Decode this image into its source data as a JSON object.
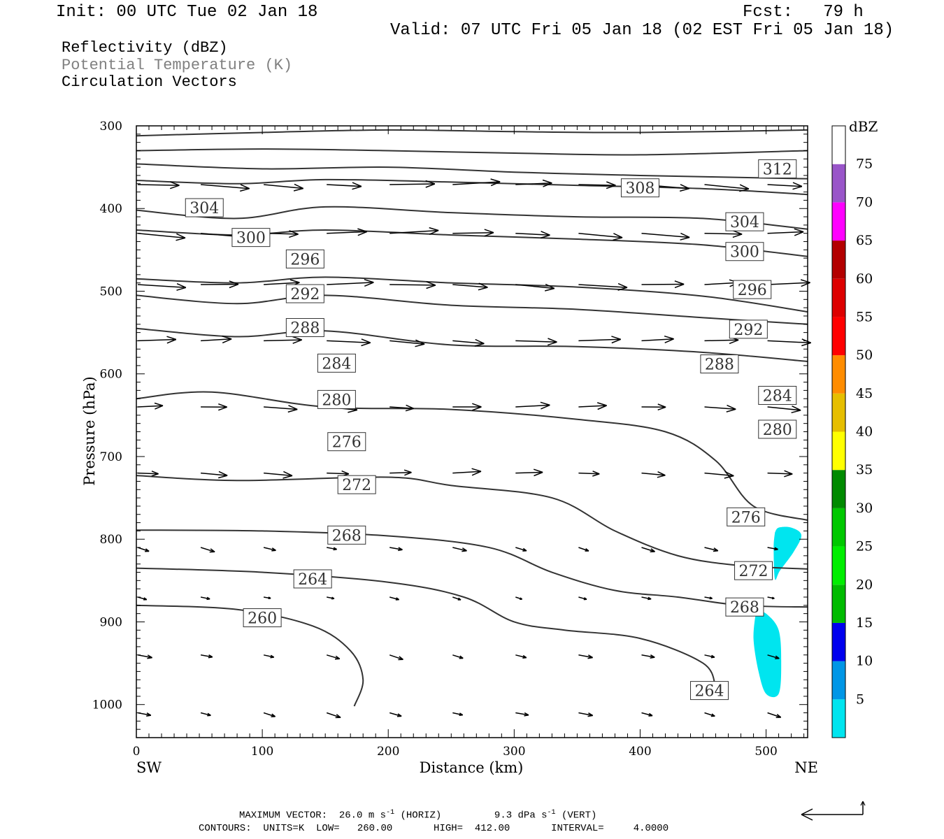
{
  "header": {
    "init": "Init: 00 UTC Tue 02 Jan 18",
    "fcst": "Fcst:   79 h",
    "valid": "Valid: 07 UTC Fri 05 Jan 18 (02 EST Fri 05 Jan 18)"
  },
  "fields": [
    {
      "label": "Reflectivity (dBZ)",
      "color": "#000000"
    },
    {
      "label": "Potential Temperature (K)",
      "color": "#808080"
    },
    {
      "label": "Circulation Vectors",
      "color": "#000000"
    }
  ],
  "footer": {
    "max_vector_label": "MAXIMUM VECTOR:",
    "horiz": "26.0 m s",
    "horiz_unit": "(HORIZ)",
    "vert": "9.3 dPa s",
    "vert_unit": "(VERT)",
    "contours": "CONTOURS:  UNITS=K  LOW=   260.00       HIGH=  412.00       INTERVAL=     4.0000"
  },
  "chart_data": {
    "type": "cross-section",
    "xlabel": "Distance (km)",
    "ylabel": "Pressure (hPa)",
    "x_left_label": "SW",
    "x_right_label": "NE",
    "xlim": [
      0,
      533
    ],
    "ylim": [
      1040,
      300
    ],
    "x_ticks": [
      0,
      100,
      200,
      300,
      400,
      500
    ],
    "y_ticks": [
      300,
      400,
      500,
      600,
      700,
      800,
      900,
      1000
    ],
    "colorbar": {
      "unit": "dBZ",
      "levels": [
        5,
        10,
        15,
        20,
        25,
        30,
        35,
        40,
        45,
        50,
        55,
        60,
        65,
        70,
        75
      ],
      "colors": [
        "#00e5ef",
        "#0096e6",
        "#0000ee",
        "#00bb00",
        "#00ee00",
        "#00c800",
        "#008a00",
        "#ffff00",
        "#e6be00",
        "#ff8c00",
        "#ff0000",
        "#dd0000",
        "#b30000",
        "#ff00ff",
        "#9955c9",
        "#ffffff"
      ]
    },
    "reflectivity_areas": [
      {
        "dbz": 5,
        "points": [
          [
            507,
            792
          ],
          [
            510,
            786
          ],
          [
            520,
            786
          ],
          [
            528,
            795
          ],
          [
            522,
            815
          ],
          [
            511,
            838
          ],
          [
            507,
            848
          ],
          [
            506,
            810
          ]
        ]
      },
      {
        "dbz": 5,
        "points": [
          [
            492,
            887
          ],
          [
            500,
            890
          ],
          [
            510,
            910
          ],
          [
            512,
            950
          ],
          [
            510,
            987
          ],
          [
            500,
            987
          ],
          [
            494,
            960
          ],
          [
            490,
            920
          ]
        ]
      }
    ],
    "theta_contours": [
      {
        "value": 312,
        "labels": [
          [
            509,
            352
          ]
        ],
        "points": [
          [
            0,
            312
          ],
          [
            100,
            308
          ],
          [
            200,
            305
          ],
          [
            300,
            307
          ],
          [
            400,
            308
          ],
          [
            533,
            305
          ]
        ]
      },
      {
        "value": 308,
        "labels": [
          [
            400,
            375
          ]
        ],
        "points": [
          [
            0,
            330
          ],
          [
            100,
            328
          ],
          [
            200,
            330
          ],
          [
            300,
            333
          ],
          [
            400,
            335
          ],
          [
            533,
            330
          ]
        ]
      },
      {
        "value": 304,
        "labels": [
          [
            54,
            399
          ],
          [
            483,
            416
          ]
        ],
        "points": [
          [
            0,
            346
          ],
          [
            100,
            352
          ],
          [
            200,
            350
          ],
          [
            300,
            356
          ],
          [
            400,
            360
          ],
          [
            533,
            364
          ]
        ]
      },
      {
        "value": 300,
        "labels": [
          [
            91,
            435
          ],
          [
            483,
            452
          ]
        ],
        "points": [
          [
            0,
            366
          ],
          [
            80,
            370
          ],
          [
            150,
            365
          ],
          [
            250,
            368
          ],
          [
            350,
            372
          ],
          [
            450,
            376
          ],
          [
            533,
            383
          ]
        ]
      },
      {
        "value": 296,
        "labels": [
          [
            134,
            461
          ],
          [
            489,
            498
          ]
        ],
        "points": [
          [
            0,
            402
          ],
          [
            80,
            412
          ],
          [
            150,
            398
          ],
          [
            250,
            405
          ],
          [
            350,
            410
          ],
          [
            450,
            412
          ],
          [
            533,
            425
          ]
        ]
      },
      {
        "value": 292,
        "labels": [
          [
            134,
            503
          ],
          [
            486,
            546
          ]
        ],
        "points": [
          [
            0,
            426
          ],
          [
            80,
            432
          ],
          [
            150,
            426
          ],
          [
            250,
            432
          ],
          [
            350,
            437
          ],
          [
            450,
            444
          ],
          [
            533,
            458
          ]
        ]
      },
      {
        "value": 288,
        "labels": [
          [
            134,
            544
          ],
          [
            463,
            588
          ]
        ],
        "points": [
          [
            0,
            485
          ],
          [
            80,
            490
          ],
          [
            150,
            483
          ],
          [
            250,
            490
          ],
          [
            350,
            495
          ],
          [
            450,
            506
          ],
          [
            533,
            525
          ]
        ]
      },
      {
        "value": 284,
        "labels": [
          [
            159,
            587
          ],
          [
            509,
            626
          ]
        ],
        "points": [
          [
            0,
            505
          ],
          [
            80,
            515
          ],
          [
            150,
            505
          ],
          [
            250,
            517
          ],
          [
            350,
            522
          ],
          [
            450,
            532
          ],
          [
            533,
            540
          ]
        ]
      },
      {
        "value": 280,
        "labels": [
          [
            159,
            631
          ],
          [
            509,
            667
          ]
        ],
        "points": [
          [
            0,
            545
          ],
          [
            80,
            555
          ],
          [
            150,
            548
          ],
          [
            250,
            565
          ],
          [
            350,
            567
          ],
          [
            450,
            574
          ],
          [
            533,
            585
          ]
        ]
      },
      {
        "value": 276,
        "labels": [
          [
            167,
            682
          ],
          [
            484,
            773
          ]
        ],
        "points": [
          [
            0,
            630
          ],
          [
            60,
            622
          ],
          [
            150,
            640
          ],
          [
            250,
            643
          ],
          [
            350,
            655
          ],
          [
            420,
            670
          ],
          [
            460,
            705
          ],
          [
            490,
            760
          ],
          [
            533,
            777
          ]
        ]
      },
      {
        "value": 272,
        "labels": [
          [
            175,
            734
          ],
          [
            490,
            838
          ]
        ],
        "points": [
          [
            0,
            723
          ],
          [
            80,
            729
          ],
          [
            200,
            725
          ],
          [
            250,
            735
          ],
          [
            330,
            750
          ],
          [
            380,
            790
          ],
          [
            430,
            820
          ],
          [
            480,
            832
          ],
          [
            533,
            836
          ]
        ]
      },
      {
        "value": 268,
        "labels": [
          [
            167,
            795
          ],
          [
            483,
            882
          ]
        ],
        "points": [
          [
            0,
            789
          ],
          [
            100,
            790
          ],
          [
            200,
            796
          ],
          [
            280,
            810
          ],
          [
            330,
            840
          ],
          [
            380,
            862
          ],
          [
            430,
            870
          ],
          [
            480,
            880
          ],
          [
            533,
            882
          ]
        ]
      },
      {
        "value": 264,
        "labels": [
          [
            140,
            848
          ],
          [
            455,
            983
          ]
        ],
        "points": [
          [
            0,
            835
          ],
          [
            100,
            840
          ],
          [
            200,
            852
          ],
          [
            260,
            870
          ],
          [
            300,
            900
          ],
          [
            340,
            910
          ],
          [
            400,
            920
          ],
          [
            450,
            950
          ],
          [
            460,
            980
          ]
        ]
      },
      {
        "value": 260,
        "labels": [
          [
            100,
            895
          ]
        ],
        "points": [
          [
            0,
            880
          ],
          [
            80,
            885
          ],
          [
            140,
            905
          ],
          [
            170,
            935
          ],
          [
            180,
            970
          ],
          [
            173,
            1002
          ]
        ]
      }
    ],
    "vector_rows": [
      {
        "p": 371,
        "scale": 1.0
      },
      {
        "p": 430,
        "scale": 1.0
      },
      {
        "p": 492,
        "scale": 1.0
      },
      {
        "p": 560,
        "scale": 0.9
      },
      {
        "p": 640,
        "scale": 0.7
      },
      {
        "p": 720,
        "scale": 0.6
      },
      {
        "p": 810,
        "scale": 0.3
      },
      {
        "p": 870,
        "scale": 0.2
      },
      {
        "p": 940,
        "scale": 0.3
      },
      {
        "p": 1010,
        "scale": 0.3
      }
    ]
  }
}
